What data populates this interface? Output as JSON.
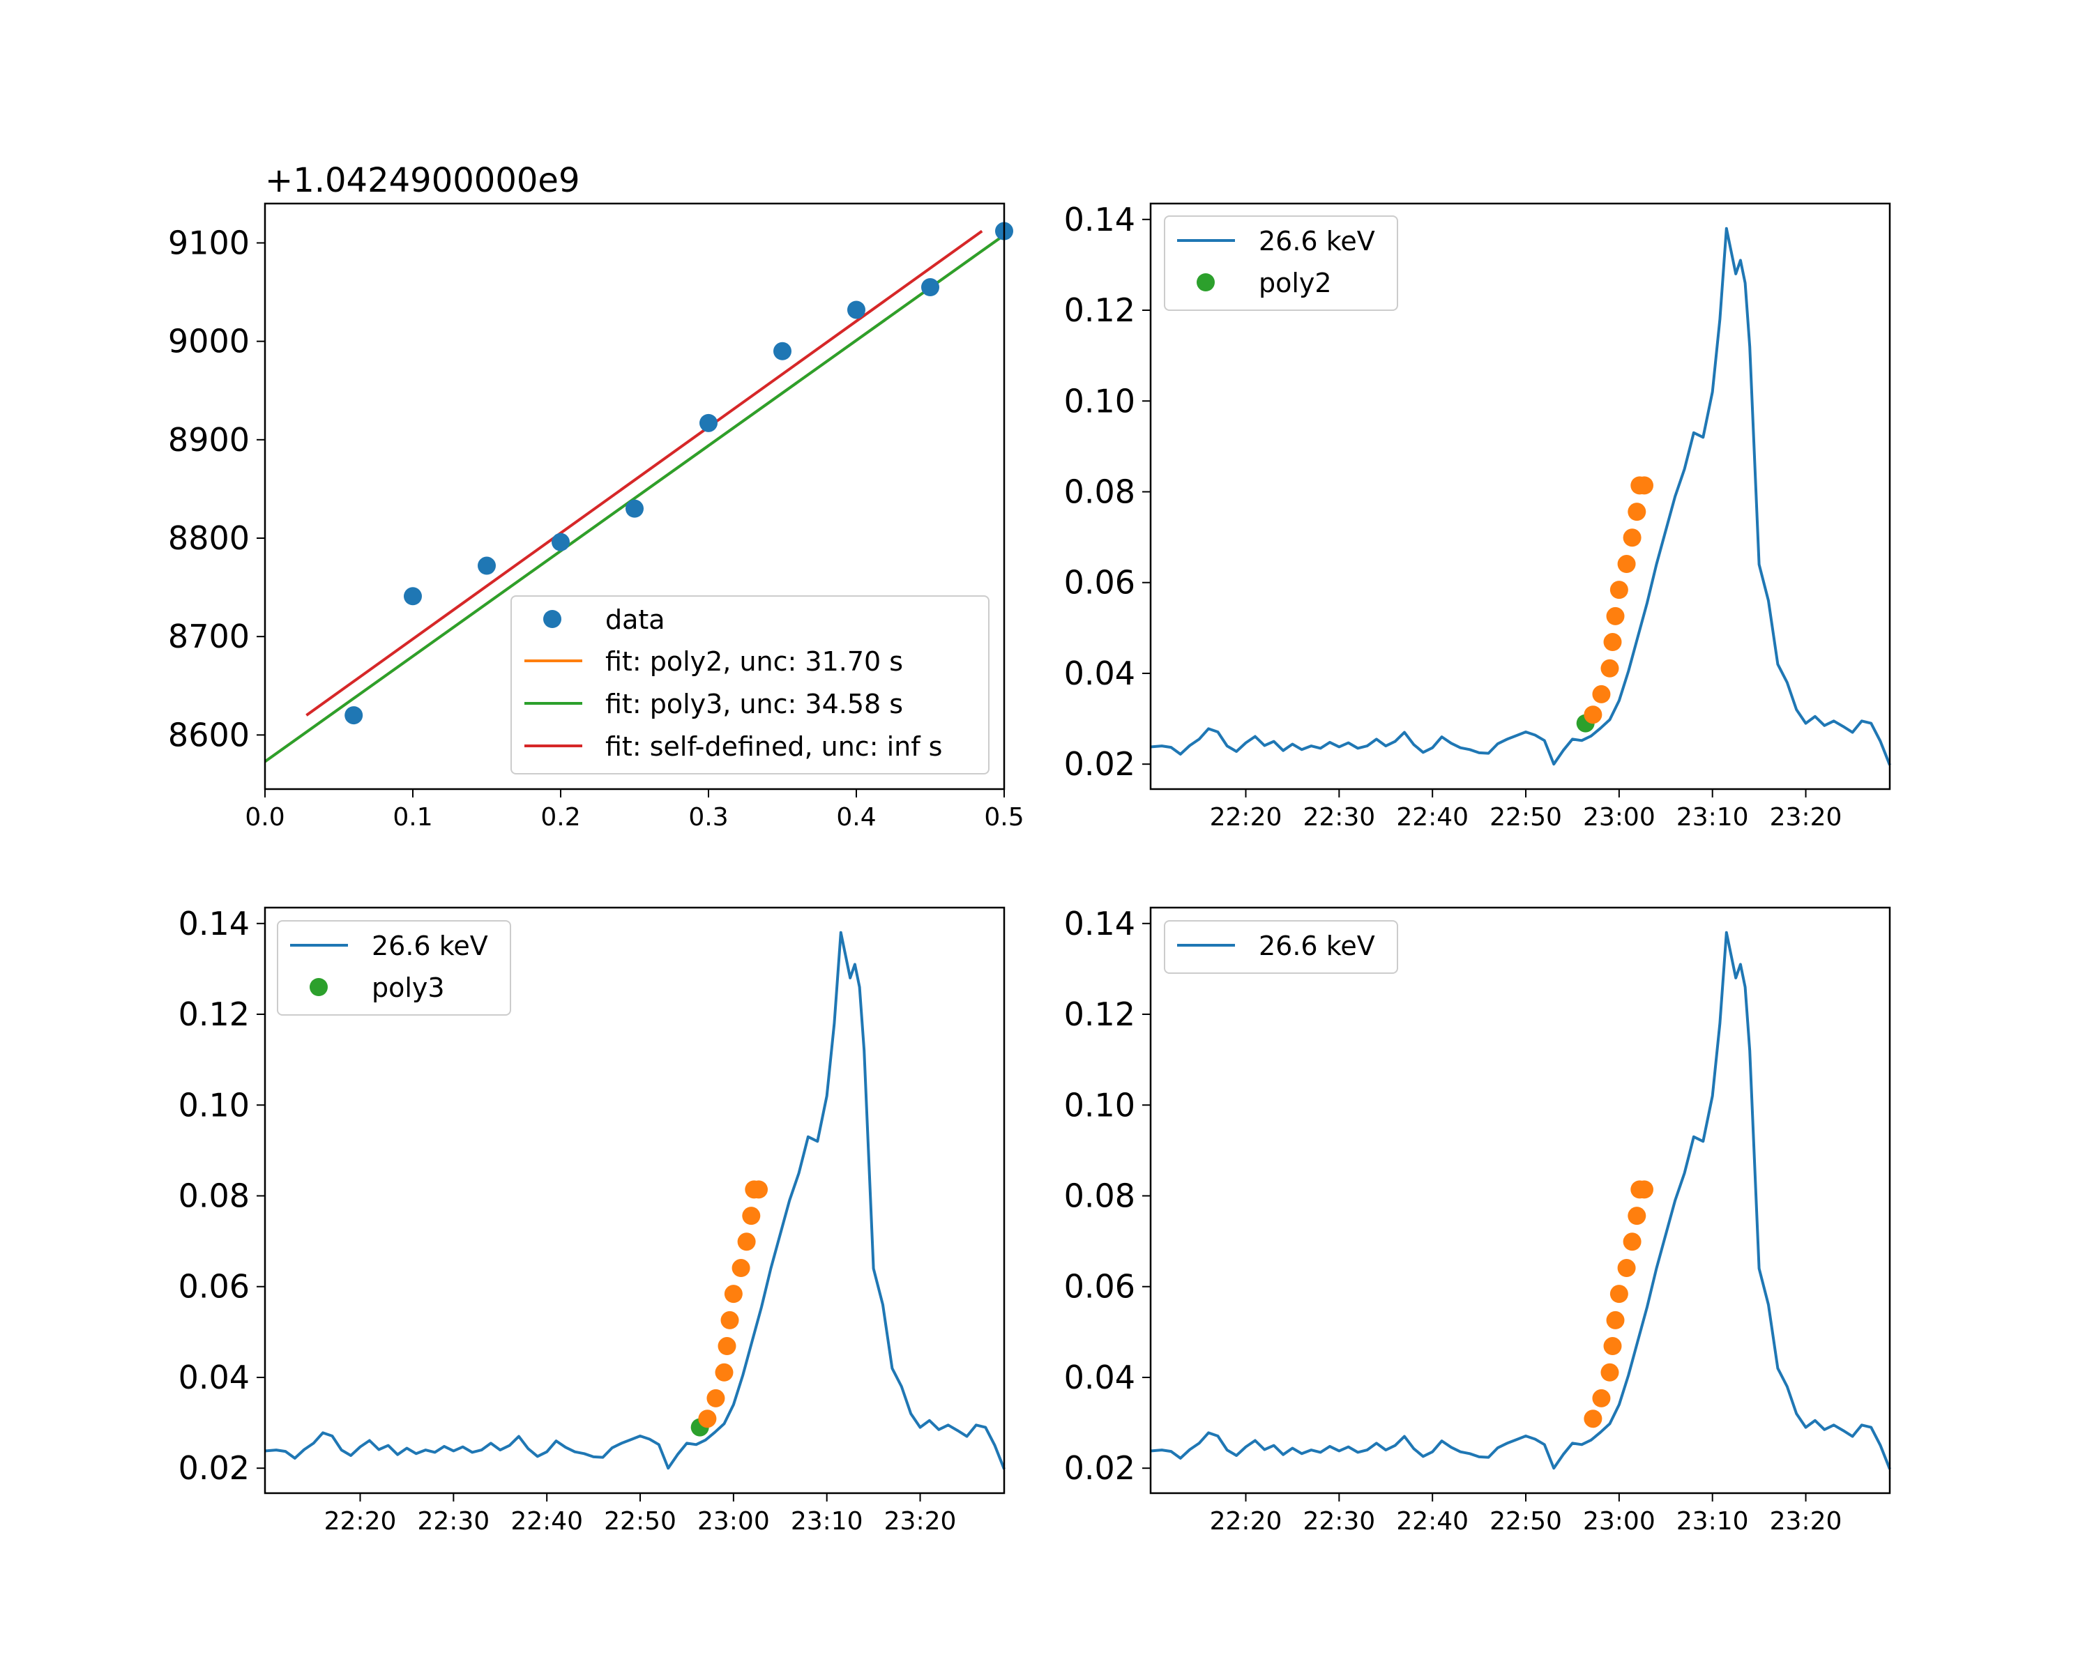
{
  "chart_data": [
    {
      "type": "scatter",
      "panel": "top-left",
      "offset_label": "+1.0424900000e9",
      "xlim": [
        0.0,
        0.5
      ],
      "ylim": [
        8545,
        9140
      ],
      "x_ticks": [
        "0.0",
        "0.1",
        "0.2",
        "0.3",
        "0.4",
        "0.5"
      ],
      "y_ticks": [
        "8600",
        "8700",
        "8800",
        "8900",
        "9000",
        "9100"
      ],
      "legend_position": "lower-right",
      "series": [
        {
          "name": "data",
          "kind": "scatter",
          "color": "#1f77b4",
          "x": [
            0.06,
            0.1,
            0.15,
            0.2,
            0.25,
            0.3,
            0.35,
            0.4,
            0.45,
            0.5
          ],
          "y": [
            8620,
            8741,
            8772,
            8796,
            8830,
            8917,
            8990,
            9032,
            9055,
            9112
          ]
        },
        {
          "name": "fit: poly2, unc: 31.70 s",
          "kind": "line",
          "color": "#ff7f0e",
          "x": [
            0.0,
            0.5
          ],
          "y": [
            8573,
            9108
          ]
        },
        {
          "name": "fit: poly3, unc: 34.58 s",
          "kind": "line",
          "color": "#2ca02c",
          "x": [
            0.0,
            0.5
          ],
          "y": [
            8573,
            9108
          ]
        },
        {
          "name": "fit: self-defined, unc: inf s",
          "kind": "line",
          "color": "#d62728",
          "x": [
            0.028,
            0.485
          ],
          "y": [
            8620,
            9112
          ]
        }
      ]
    },
    {
      "type": "line",
      "panel": "top-right",
      "xlim": [
        0,
        1
      ]
    },
    {
      "type": "line",
      "panel": "bottom-left"
    },
    {
      "type": "line",
      "panel": "bottom-right"
    }
  ],
  "time_panels": {
    "xlim_minutes": [
      1329.8,
      1409
    ],
    "ylim": [
      0.0145,
      0.1435
    ],
    "x_ticks": [
      "22:20",
      "22:30",
      "22:40",
      "22:50",
      "23:00",
      "23:10",
      "23:20"
    ],
    "x_tick_minutes": [
      1340,
      1350,
      1360,
      1370,
      1380,
      1390,
      1400
    ],
    "y_ticks": [
      "0.02",
      "0.04",
      "0.06",
      "0.08",
      "0.10",
      "0.12",
      "0.14"
    ],
    "y_tick_values": [
      0.02,
      0.04,
      0.06,
      0.08,
      0.1,
      0.12,
      0.14
    ],
    "line_series_name": "26.6 keV",
    "line_color": "#1f77b4",
    "orange_color": "#ff7f0e",
    "green_color": "#2ca02c",
    "curve_time_minutes": [
      1329.8,
      1331,
      1332,
      1333,
      1334,
      1335,
      1336,
      1337,
      1338,
      1339,
      1340,
      1341,
      1342,
      1343,
      1344,
      1345,
      1346,
      1347,
      1348,
      1349,
      1350,
      1351,
      1352,
      1353,
      1354,
      1355,
      1356,
      1357,
      1358,
      1359,
      1360,
      1361,
      1362,
      1363,
      1364,
      1365,
      1366,
      1367,
      1368,
      1369,
      1370,
      1371,
      1372,
      1373,
      1374,
      1375,
      1376,
      1377,
      1378,
      1379,
      1380,
      1381,
      1382,
      1383,
      1384,
      1385,
      1386,
      1387,
      1388,
      1389,
      1390,
      1390.8,
      1391.5,
      1392,
      1392.5,
      1393,
      1393.5,
      1394,
      1395,
      1396,
      1397,
      1398,
      1399,
      1400,
      1401,
      1402,
      1403,
      1404,
      1405,
      1406,
      1407,
      1408,
      1409
    ],
    "curve_values": [
      0.0238,
      0.024,
      0.0237,
      0.0222,
      0.0241,
      0.0255,
      0.0278,
      0.0271,
      0.024,
      0.0228,
      0.0247,
      0.0261,
      0.0241,
      0.025,
      0.023,
      0.0244,
      0.0232,
      0.024,
      0.0235,
      0.0248,
      0.0238,
      0.0247,
      0.0235,
      0.024,
      0.0255,
      0.024,
      0.025,
      0.027,
      0.0243,
      0.0226,
      0.0236,
      0.026,
      0.0246,
      0.0236,
      0.0232,
      0.0225,
      0.0224,
      0.0245,
      0.0255,
      0.0263,
      0.0271,
      0.0264,
      0.0252,
      0.02,
      0.023,
      0.0255,
      0.0252,
      0.0262,
      0.0279,
      0.0298,
      0.034,
      0.0405,
      0.048,
      0.0555,
      0.064,
      0.0715,
      0.079,
      0.085,
      0.093,
      0.092,
      0.102,
      0.118,
      0.138,
      0.133,
      0.128,
      0.131,
      0.126,
      0.112,
      0.064,
      0.056,
      0.042,
      0.038,
      0.032,
      0.029,
      0.0305,
      0.0285,
      0.0295,
      0.0283,
      0.027,
      0.0295,
      0.029,
      0.025,
      0.0198
    ],
    "marker_time_minutes": [
      1377.2,
      1378.1,
      1379.0,
      1379.3,
      1379.6,
      1380.0,
      1380.8,
      1381.4,
      1381.9,
      1382.2,
      1382.7
    ],
    "marker_values": [
      0.0309,
      0.0354,
      0.0411,
      0.0469,
      0.0526,
      0.0584,
      0.0641,
      0.0699,
      0.0756,
      0.0814,
      0.0814
    ]
  },
  "legends": {
    "top_right": {
      "line": "26.6 keV",
      "marker": "poly2"
    },
    "bottom_left": {
      "line": "26.6 keV",
      "marker": "poly3"
    },
    "bottom_right": {
      "line": "26.6 keV"
    }
  }
}
